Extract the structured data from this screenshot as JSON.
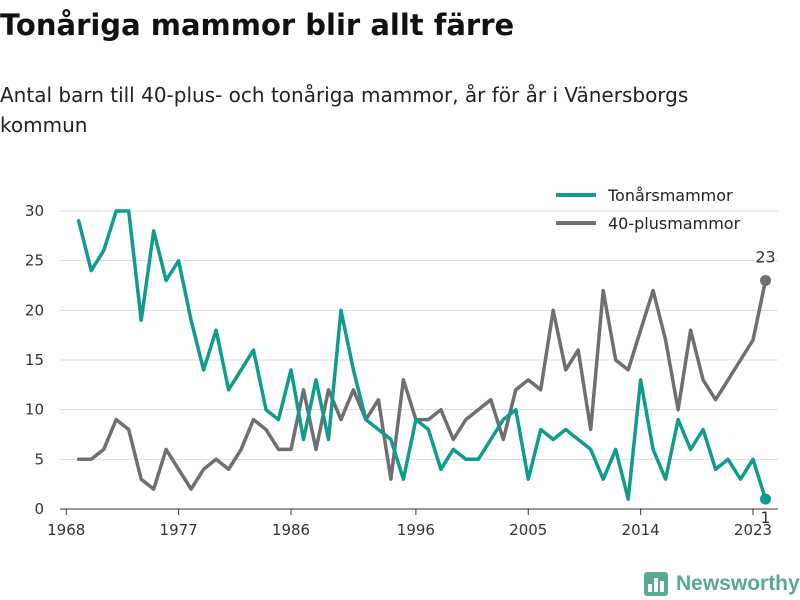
{
  "title": "Tonåriga mammor blir allt färre",
  "subtitle": "Antal barn till 40-plus- och tonåriga mammor, år för år i Vänersborgs kommun",
  "brand": "Newsworthy",
  "brand_icon": "bar-chart-logo-icon",
  "chart_data": {
    "type": "line",
    "x": [
      1969,
      1970,
      1971,
      1972,
      1973,
      1974,
      1975,
      1976,
      1977,
      1978,
      1979,
      1980,
      1981,
      1982,
      1983,
      1984,
      1985,
      1986,
      1987,
      1988,
      1989,
      1990,
      1991,
      1992,
      1993,
      1994,
      1995,
      1996,
      1997,
      1998,
      1999,
      2000,
      2001,
      2002,
      2003,
      2004,
      2005,
      2006,
      2007,
      2008,
      2009,
      2010,
      2011,
      2012,
      2013,
      2014,
      2015,
      2016,
      2017,
      2018,
      2019,
      2020,
      2021,
      2022,
      2023,
      2024
    ],
    "series": [
      {
        "name": "Tonårsmammor",
        "color": "#0f9b8e",
        "values": [
          29,
          24,
          26,
          30,
          30,
          19,
          28,
          23,
          25,
          19,
          14,
          18,
          12,
          14,
          16,
          10,
          9,
          14,
          7,
          13,
          7,
          20,
          14,
          9,
          8,
          7,
          3,
          9,
          8,
          4,
          6,
          5,
          5,
          7,
          9,
          10,
          3,
          8,
          7,
          8,
          7,
          6,
          3,
          6,
          1,
          13,
          6,
          3,
          9,
          6,
          8,
          4,
          5,
          3,
          5,
          1
        ]
      },
      {
        "name": "40-plusmammor",
        "color": "#6e6e73",
        "values": [
          5,
          5,
          6,
          9,
          8,
          3,
          2,
          6,
          4,
          2,
          4,
          5,
          4,
          6,
          9,
          8,
          6,
          6,
          12,
          6,
          12,
          9,
          12,
          9,
          11,
          3,
          13,
          9,
          9,
          10,
          7,
          9,
          10,
          11,
          7,
          12,
          13,
          12,
          20,
          14,
          16,
          8,
          22,
          15,
          14,
          18,
          22,
          17,
          10,
          18,
          13,
          11,
          13,
          15,
          17,
          23
        ]
      }
    ],
    "end_labels": [
      "1",
      "23"
    ],
    "xticks": [
      "1968",
      "1977",
      "1986",
      "1996",
      "2005",
      "2014",
      "2023"
    ],
    "yticks": [
      "0",
      "5",
      "10",
      "15",
      "20",
      "25",
      "30"
    ],
    "xlim": [
      1967.5,
      2025
    ],
    "ylim": [
      0,
      30
    ],
    "grid": true,
    "legend": "top-right"
  }
}
